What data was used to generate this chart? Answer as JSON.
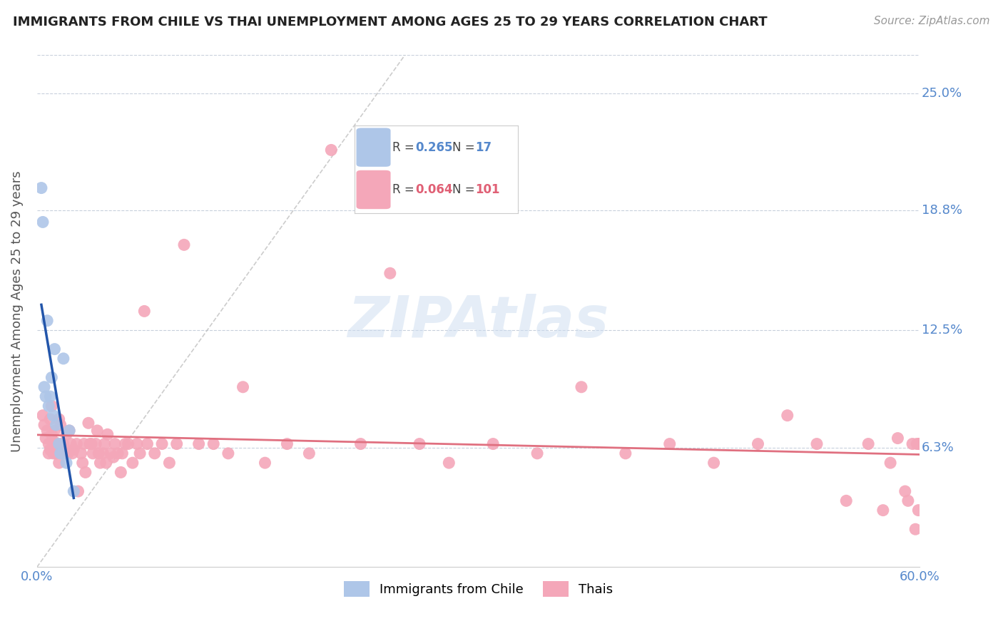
{
  "title": "IMMIGRANTS FROM CHILE VS THAI UNEMPLOYMENT AMONG AGES 25 TO 29 YEARS CORRELATION CHART",
  "source": "Source: ZipAtlas.com",
  "ylabel": "Unemployment Among Ages 25 to 29 years",
  "xlim": [
    0.0,
    0.6
  ],
  "ylim": [
    0.0,
    0.27
  ],
  "yticks": [
    0.063,
    0.125,
    0.188,
    0.25
  ],
  "ytick_labels": [
    "6.3%",
    "12.5%",
    "18.8%",
    "25.0%"
  ],
  "xticks": [
    0.0,
    0.6
  ],
  "xtick_labels": [
    "0.0%",
    "60.0%"
  ],
  "chile_R": "0.265",
  "chile_N": "17",
  "thai_R": "0.064",
  "thai_N": "101",
  "chile_color": "#aec6e8",
  "thai_color": "#f4a7b9",
  "chile_line_color": "#2255aa",
  "thai_line_color": "#e07080",
  "watermark_color": "#ccddf0",
  "chile_x": [
    0.003,
    0.004,
    0.005,
    0.006,
    0.007,
    0.008,
    0.009,
    0.01,
    0.011,
    0.012,
    0.013,
    0.015,
    0.016,
    0.018,
    0.02,
    0.022,
    0.025
  ],
  "chile_y": [
    0.2,
    0.182,
    0.095,
    0.09,
    0.13,
    0.085,
    0.09,
    0.1,
    0.08,
    0.115,
    0.075,
    0.065,
    0.06,
    0.11,
    0.055,
    0.072,
    0.04
  ],
  "thai_x": [
    0.004,
    0.005,
    0.006,
    0.007,
    0.008,
    0.008,
    0.009,
    0.009,
    0.01,
    0.01,
    0.011,
    0.011,
    0.012,
    0.012,
    0.013,
    0.014,
    0.015,
    0.015,
    0.016,
    0.017,
    0.018,
    0.019,
    0.02,
    0.021,
    0.022,
    0.023,
    0.024,
    0.025,
    0.027,
    0.028,
    0.03,
    0.031,
    0.032,
    0.033,
    0.035,
    0.036,
    0.037,
    0.038,
    0.04,
    0.041,
    0.042,
    0.043,
    0.045,
    0.046,
    0.047,
    0.048,
    0.05,
    0.052,
    0.053,
    0.055,
    0.057,
    0.058,
    0.06,
    0.062,
    0.065,
    0.068,
    0.07,
    0.073,
    0.075,
    0.08,
    0.085,
    0.09,
    0.095,
    0.1,
    0.11,
    0.12,
    0.13,
    0.14,
    0.155,
    0.17,
    0.185,
    0.2,
    0.22,
    0.24,
    0.26,
    0.28,
    0.31,
    0.34,
    0.37,
    0.4,
    0.43,
    0.46,
    0.49,
    0.51,
    0.53,
    0.55,
    0.565,
    0.575,
    0.58,
    0.585,
    0.59,
    0.592,
    0.595,
    0.597,
    0.598,
    0.599,
    0.6,
    0.6,
    0.6,
    0.6,
    0.6
  ],
  "thai_y": [
    0.08,
    0.075,
    0.068,
    0.072,
    0.065,
    0.06,
    0.078,
    0.062,
    0.085,
    0.07,
    0.065,
    0.06,
    0.072,
    0.066,
    0.06,
    0.065,
    0.078,
    0.055,
    0.075,
    0.065,
    0.065,
    0.06,
    0.07,
    0.06,
    0.072,
    0.065,
    0.06,
    0.062,
    0.065,
    0.04,
    0.06,
    0.055,
    0.065,
    0.05,
    0.076,
    0.065,
    0.065,
    0.06,
    0.065,
    0.072,
    0.06,
    0.055,
    0.06,
    0.065,
    0.055,
    0.07,
    0.06,
    0.058,
    0.065,
    0.06,
    0.05,
    0.06,
    0.065,
    0.065,
    0.055,
    0.065,
    0.06,
    0.135,
    0.065,
    0.06,
    0.065,
    0.055,
    0.065,
    0.17,
    0.065,
    0.065,
    0.06,
    0.095,
    0.055,
    0.065,
    0.06,
    0.22,
    0.065,
    0.155,
    0.065,
    0.055,
    0.065,
    0.06,
    0.095,
    0.06,
    0.065,
    0.055,
    0.065,
    0.08,
    0.065,
    0.035,
    0.065,
    0.03,
    0.055,
    0.068,
    0.04,
    0.035,
    0.065,
    0.02,
    0.065,
    0.03,
    0.065,
    0.065,
    0.065,
    0.065,
    0.065
  ]
}
